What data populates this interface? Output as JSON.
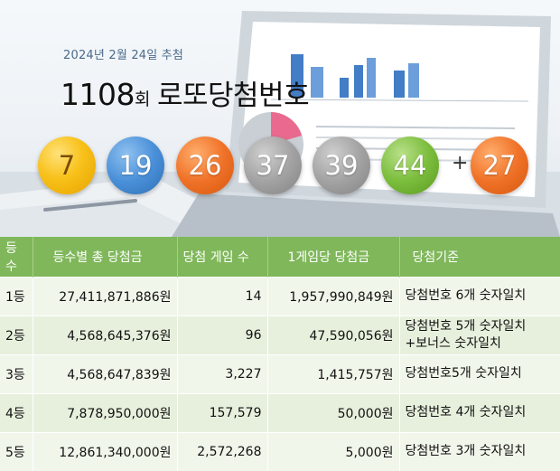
{
  "hero": {
    "draw_date": "2024년 2월 24일 추첨",
    "round_number": "1108",
    "round_suffix": "회",
    "title": "로또당첨번호"
  },
  "winning_numbers": [
    {
      "value": "7",
      "color": "#f8c11a"
    },
    {
      "value": "19",
      "color": "#4a90d9"
    },
    {
      "value": "26",
      "color": "#f07228"
    },
    {
      "value": "37",
      "color": "#a3a3a3"
    },
    {
      "value": "39",
      "color": "#a3a3a3"
    },
    {
      "value": "44",
      "color": "#7bbd3c"
    }
  ],
  "plus_sign": "+",
  "bonus_number": {
    "value": "27",
    "color": "#f07228"
  },
  "table": {
    "header_color": "#7fb75a",
    "headers": [
      "등수",
      "등수별 총 당첨금",
      "당첨 게임 수",
      "1게임당 당첨금",
      "당첨기준"
    ],
    "rows": [
      {
        "rank": "1등",
        "total": "27,411,871,886원",
        "games": "14",
        "per_game": "1,957,990,849원",
        "criteria": "당첨번호 6개 숫자일치"
      },
      {
        "rank": "2등",
        "total": "4,568,645,376원",
        "games": "96",
        "per_game": "47,590,056원",
        "criteria": "당첨번호 5개 숫자일치",
        "criteria2": "+보너스 숫자일치"
      },
      {
        "rank": "3등",
        "total": "4,568,647,839원",
        "games": "3,227",
        "per_game": "1,415,757원",
        "criteria": "당첨번호5개 숫자일치"
      },
      {
        "rank": "4등",
        "total": "7,878,950,000원",
        "games": "157,579",
        "per_game": "50,000원",
        "criteria": "당첨번호 4개 숫자일치"
      },
      {
        "rank": "5등",
        "total": "12,861,340,000원",
        "games": "2,572,268",
        "per_game": "5,000원",
        "criteria": "당첨번호 3개 숫자일치"
      }
    ]
  }
}
